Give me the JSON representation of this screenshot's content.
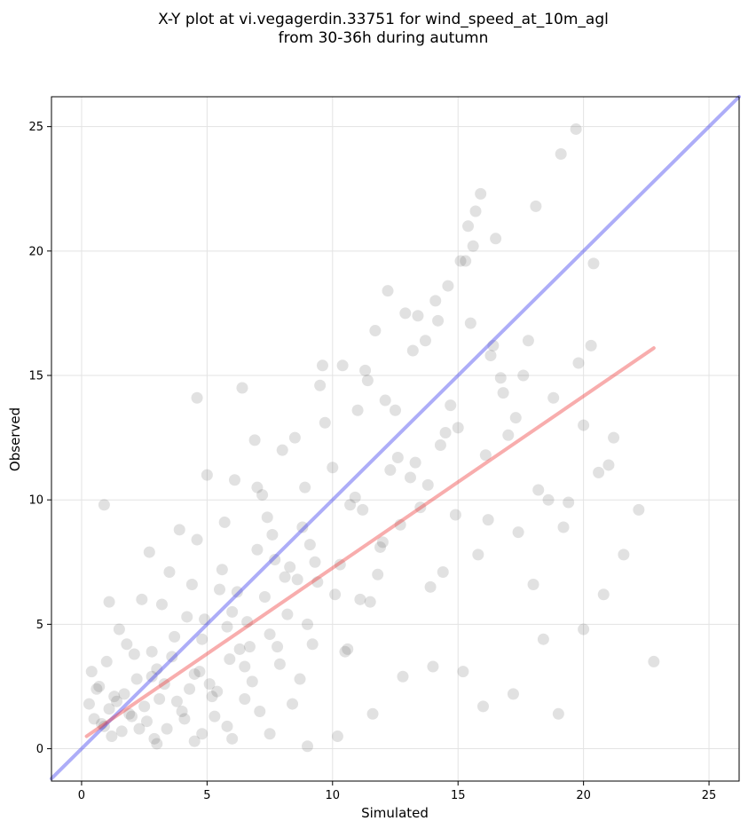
{
  "chart_data": {
    "type": "scatter",
    "title_line1": "X-Y plot at vi.vegagerdin.33751 for wind_speed_at_10m_agl",
    "title_line2": "from 30-36h during autumn",
    "xlabel": "Simulated",
    "ylabel": "Observed",
    "xlim": [
      -1.2,
      26.2
    ],
    "ylim": [
      -1.3,
      26.2
    ],
    "xticks": [
      0,
      5,
      10,
      15,
      20,
      25
    ],
    "yticks": [
      0,
      5,
      10,
      15,
      20,
      25
    ],
    "grid": true,
    "point_color": "#444444",
    "identity_line": {
      "x": [
        -1.2,
        26.2
      ],
      "y": [
        -1.2,
        26.2
      ],
      "color": "#3333ee"
    },
    "regression_line": {
      "x": [
        0.2,
        22.8
      ],
      "y": [
        0.5,
        16.1
      ],
      "color": "#ee3333"
    },
    "points": {
      "x": [
        0.3,
        0.5,
        0.7,
        0.9,
        1.1,
        1.3,
        1.6,
        1.9,
        2.2,
        2.6,
        3.0,
        3.4,
        3.8,
        4.3,
        4.8,
        5.3,
        5.9,
        6.5,
        7.1,
        7.8,
        0.4,
        0.8,
        1.2,
        1.7,
        2.1,
        2.5,
        2.9,
        3.3,
        3.7,
        4.1,
        4.5,
        4.9,
        5.4,
        5.8,
        6.3,
        6.8,
        7.3,
        7.9,
        8.4,
        9.0,
        0.6,
        1.0,
        1.4,
        1.8,
        2.3,
        2.8,
        3.2,
        3.6,
        4.0,
        4.4,
        4.8,
        5.2,
        5.6,
        6.0,
        6.5,
        7.0,
        7.5,
        8.1,
        8.7,
        9.3,
        1.5,
        2.0,
        2.4,
        2.8,
        3.5,
        4.2,
        4.6,
        5.1,
        5.7,
        6.2,
        6.7,
        7.2,
        7.7,
        8.2,
        8.8,
        9.4,
        10.0,
        10.6,
        11.2,
        11.8,
        2.7,
        3.1,
        3.9,
        4.7,
        5.5,
        6.1,
        6.6,
        7.4,
        8.0,
        8.6,
        9.1,
        9.7,
        10.3,
        10.9,
        11.5,
        12.1,
        12.7,
        13.3,
        13.9,
        14.5,
        5.0,
        5.8,
        6.9,
        7.6,
        8.3,
        8.9,
        9.5,
        10.1,
        10.7,
        11.3,
        11.9,
        12.5,
        13.1,
        13.7,
        14.3,
        14.9,
        15.5,
        16.1,
        16.7,
        17.3,
        9.2,
        10.4,
        11.1,
        11.7,
        12.3,
        12.9,
        13.5,
        14.1,
        14.7,
        15.3,
        15.8,
        16.4,
        17.0,
        17.6,
        18.2,
        18.8,
        19.4,
        20.0,
        20.6,
        21.2,
        10.5,
        11.4,
        12.0,
        12.6,
        13.2,
        13.8,
        14.4,
        15.0,
        15.6,
        16.2,
        16.8,
        17.4,
        18.0,
        18.6,
        19.2,
        19.8,
        20.4,
        21.0,
        21.6,
        22.2,
        3.0,
        4.5,
        6.0,
        7.5,
        9.0,
        10.2,
        11.6,
        12.8,
        14.0,
        15.2,
        16.0,
        17.2,
        18.4,
        19.0,
        20.0,
        20.8,
        0.9,
        1.1,
        4.6,
        6.4,
        7.0,
        8.5,
        9.6,
        11.0,
        12.2,
        13.4,
        14.6,
        15.4,
        15.9,
        16.5,
        17.8,
        19.1,
        20.3,
        22.8,
        14.2,
        15.1,
        15.7,
        16.3,
        18.1,
        19.7
      ],
      "y": [
        1.8,
        1.2,
        2.5,
        0.9,
        1.6,
        2.1,
        0.7,
        1.4,
        2.8,
        1.1,
        3.2,
        0.8,
        1.9,
        2.4,
        0.6,
        1.3,
        3.6,
        2.0,
        1.5,
        4.1,
        3.1,
        1.0,
        0.5,
        2.2,
        3.8,
        1.7,
        0.4,
        2.6,
        4.5,
        1.2,
        3.0,
        5.2,
        2.3,
        0.9,
        4.0,
        2.7,
        6.1,
        3.4,
        1.8,
        5.0,
        2.4,
        3.5,
        1.9,
        4.2,
        0.8,
        2.9,
        5.8,
        3.7,
        1.5,
        6.6,
        4.4,
        2.1,
        7.2,
        5.5,
        3.3,
        8.0,
        4.6,
        6.9,
        2.8,
        7.5,
        4.8,
        1.3,
        6.0,
        3.9,
        7.1,
        5.3,
        8.4,
        2.6,
        9.1,
        6.3,
        4.1,
        10.2,
        7.6,
        5.4,
        8.9,
        6.7,
        11.3,
        4.0,
        9.6,
        7.0,
        7.9,
        2.0,
        8.8,
        3.1,
        6.4,
        10.8,
        5.1,
        9.3,
        12.0,
        6.8,
        8.2,
        13.1,
        7.4,
        10.1,
        5.9,
        14.0,
        9.0,
        11.5,
        6.5,
        12.7,
        11.0,
        4.9,
        12.4,
        8.6,
        7.3,
        10.5,
        14.6,
        6.2,
        9.8,
        15.2,
        8.1,
        13.6,
        10.9,
        16.4,
        12.2,
        9.4,
        17.1,
        11.8,
        14.9,
        13.3,
        4.2,
        15.4,
        6.0,
        16.8,
        11.2,
        17.5,
        9.7,
        18.0,
        13.8,
        19.6,
        7.8,
        16.2,
        12.6,
        15.0,
        10.4,
        14.1,
        9.9,
        13.0,
        11.1,
        12.5,
        3.9,
        14.8,
        8.3,
        11.7,
        16.0,
        10.6,
        7.1,
        12.9,
        20.2,
        9.2,
        14.3,
        8.7,
        6.6,
        10.0,
        8.9,
        15.5,
        19.5,
        11.4,
        7.8,
        9.6,
        0.2,
        0.3,
        0.4,
        0.6,
        0.1,
        0.5,
        1.4,
        2.9,
        3.3,
        3.1,
        1.7,
        2.2,
        4.4,
        1.4,
        4.8,
        6.2,
        9.8,
        5.9,
        14.1,
        14.5,
        10.5,
        12.5,
        15.4,
        13.6,
        18.4,
        17.4,
        18.6,
        21.0,
        22.3,
        20.5,
        16.4,
        23.9,
        16.2,
        3.5,
        17.2,
        19.6,
        21.6,
        15.8,
        21.8,
        24.9
      ]
    }
  }
}
